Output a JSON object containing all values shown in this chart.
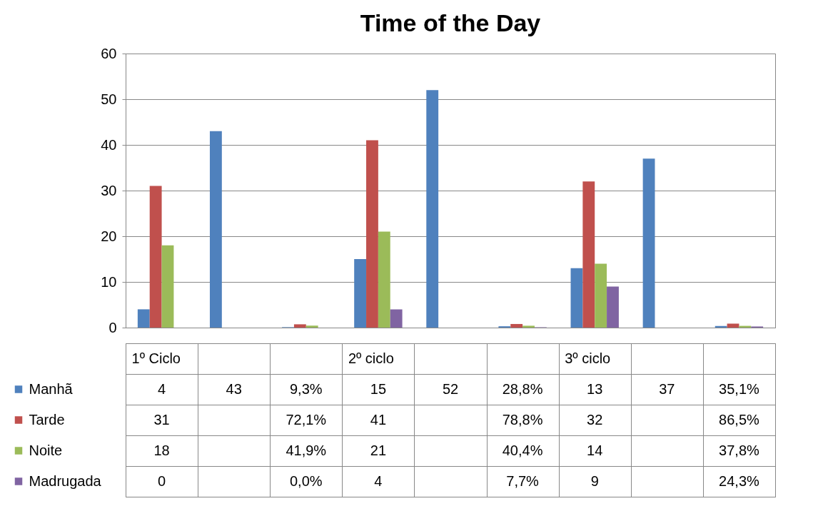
{
  "chart_data": {
    "type": "bar",
    "title": "Time of the Day",
    "categories": [
      "1º Ciclo",
      null,
      null,
      "2º ciclo",
      null,
      null,
      "3º ciclo",
      null,
      null
    ],
    "series": [
      {
        "name": "Manhã",
        "color": "#4f81bd",
        "values": [
          4,
          43,
          0.093,
          15,
          52,
          0.288,
          13,
          37,
          0.351
        ],
        "value_labels": [
          "4",
          "43",
          "9,3%",
          "15",
          "52",
          "28,8%",
          "13",
          "37",
          "35,1%"
        ]
      },
      {
        "name": "Tarde",
        "color": "#c0504d",
        "values": [
          31,
          null,
          0.721,
          41,
          null,
          0.788,
          32,
          null,
          0.865
        ],
        "value_labels": [
          "31",
          null,
          "72,1%",
          "41",
          null,
          "78,8%",
          "32",
          null,
          "86,5%"
        ]
      },
      {
        "name": "Noite",
        "color": "#9bbb59",
        "values": [
          18,
          null,
          0.419,
          21,
          null,
          0.404,
          14,
          null,
          0.378
        ],
        "value_labels": [
          "18",
          null,
          "41,9%",
          "21",
          null,
          "40,4%",
          "14",
          null,
          "37,8%"
        ]
      },
      {
        "name": "Madrugada",
        "color": "#8064a2",
        "values": [
          0,
          null,
          0,
          4,
          null,
          0.077,
          9,
          null,
          0.243
        ],
        "value_labels": [
          "0",
          null,
          "0,0%",
          "4",
          null,
          "7,7%",
          "9",
          null,
          "24,3%"
        ]
      }
    ],
    "ylim": [
      0,
      60
    ],
    "yticks": [
      0,
      10,
      20,
      30,
      40,
      50,
      60
    ],
    "grid": "y",
    "legend": "bottom"
  }
}
